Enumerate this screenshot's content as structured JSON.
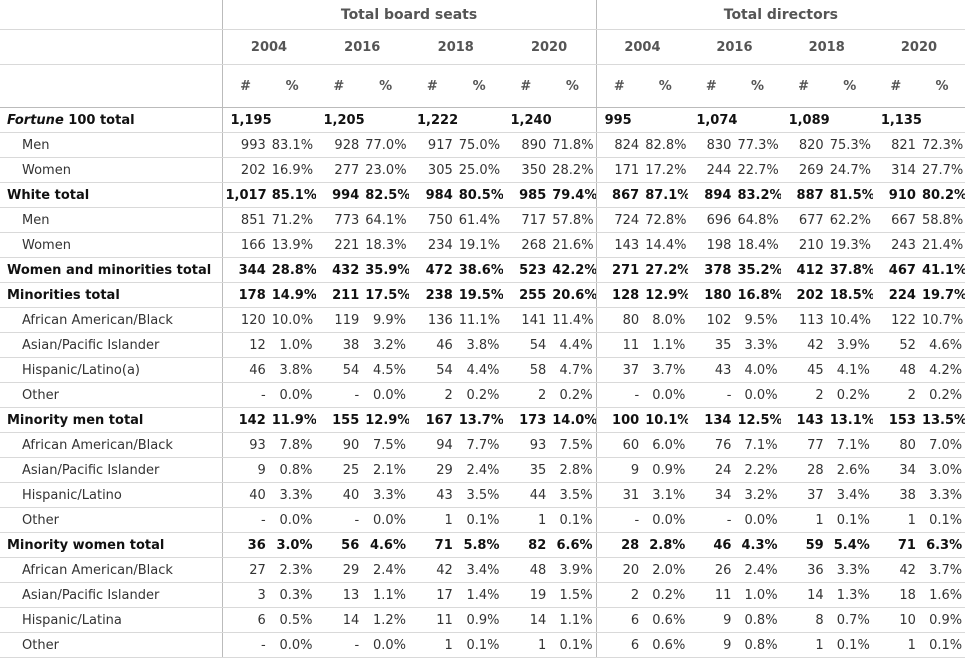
{
  "header": {
    "groups": [
      "Total board seats",
      "Total directors"
    ],
    "years": [
      "2004",
      "2016",
      "2018",
      "2020"
    ],
    "measures": [
      "#",
      "%"
    ]
  },
  "table": {
    "rows": [
      {
        "label_italic": "Fortune",
        "label": "100 total",
        "bold": true,
        "cells": [
          "1,195",
          "1,205",
          "1,222",
          "1,240",
          "995",
          "1,074",
          "1,089",
          "1,135"
        ]
      },
      {
        "label": "Men",
        "cells": [
          "993",
          "83.1%",
          "928",
          "77.0%",
          "917",
          "75.0%",
          "890",
          "71.8%",
          "824",
          "82.8%",
          "830",
          "77.3%",
          "820",
          "75.3%",
          "821",
          "72.3%"
        ]
      },
      {
        "label": "Women",
        "cells": [
          "202",
          "16.9%",
          "277",
          "23.0%",
          "305",
          "25.0%",
          "350",
          "28.2%",
          "171",
          "17.2%",
          "244",
          "22.7%",
          "269",
          "24.7%",
          "314",
          "27.7%"
        ]
      },
      {
        "label": "White total",
        "bold": true,
        "cells": [
          "1,017",
          "85.1%",
          "994",
          "82.5%",
          "984",
          "80.5%",
          "985",
          "79.4%",
          "867",
          "87.1%",
          "894",
          "83.2%",
          "887",
          "81.5%",
          "910",
          "80.2%"
        ]
      },
      {
        "label": "Men",
        "cells": [
          "851",
          "71.2%",
          "773",
          "64.1%",
          "750",
          "61.4%",
          "717",
          "57.8%",
          "724",
          "72.8%",
          "696",
          "64.8%",
          "677",
          "62.2%",
          "667",
          "58.8%"
        ]
      },
      {
        "label": "Women",
        "cells": [
          "166",
          "13.9%",
          "221",
          "18.3%",
          "234",
          "19.1%",
          "268",
          "21.6%",
          "143",
          "14.4%",
          "198",
          "18.4%",
          "210",
          "19.3%",
          "243",
          "21.4%"
        ]
      },
      {
        "label": "Women and minorities total",
        "bold": true,
        "cells": [
          "344",
          "28.8%",
          "432",
          "35.9%",
          "472",
          "38.6%",
          "523",
          "42.2%",
          "271",
          "27.2%",
          "378",
          "35.2%",
          "412",
          "37.8%",
          "467",
          "41.1%"
        ]
      },
      {
        "label": "Minorities total",
        "bold": true,
        "cells": [
          "178",
          "14.9%",
          "211",
          "17.5%",
          "238",
          "19.5%",
          "255",
          "20.6%",
          "128",
          "12.9%",
          "180",
          "16.8%",
          "202",
          "18.5%",
          "224",
          "19.7%"
        ]
      },
      {
        "label": "African American/Black",
        "cells": [
          "120",
          "10.0%",
          "119",
          "9.9%",
          "136",
          "11.1%",
          "141",
          "11.4%",
          "80",
          "8.0%",
          "102",
          "9.5%",
          "113",
          "10.4%",
          "122",
          "10.7%"
        ]
      },
      {
        "label": "Asian/Pacific Islander",
        "cells": [
          "12",
          "1.0%",
          "38",
          "3.2%",
          "46",
          "3.8%",
          "54",
          "4.4%",
          "11",
          "1.1%",
          "35",
          "3.3%",
          "42",
          "3.9%",
          "52",
          "4.6%"
        ]
      },
      {
        "label": "Hispanic/Latino(a)",
        "cells": [
          "46",
          "3.8%",
          "54",
          "4.5%",
          "54",
          "4.4%",
          "58",
          "4.7%",
          "37",
          "3.7%",
          "43",
          "4.0%",
          "45",
          "4.1%",
          "48",
          "4.2%"
        ]
      },
      {
        "label": "Other",
        "cells": [
          "-",
          "0.0%",
          "-",
          "0.0%",
          "2",
          "0.2%",
          "2",
          "0.2%",
          "-",
          "0.0%",
          "-",
          "0.0%",
          "2",
          "0.2%",
          "2",
          "0.2%"
        ]
      },
      {
        "label": "Minority men total",
        "bold": true,
        "cells": [
          "142",
          "11.9%",
          "155",
          "12.9%",
          "167",
          "13.7%",
          "173",
          "14.0%",
          "100",
          "10.1%",
          "134",
          "12.5%",
          "143",
          "13.1%",
          "153",
          "13.5%"
        ]
      },
      {
        "label": "African American/Black",
        "cells": [
          "93",
          "7.8%",
          "90",
          "7.5%",
          "94",
          "7.7%",
          "93",
          "7.5%",
          "60",
          "6.0%",
          "76",
          "7.1%",
          "77",
          "7.1%",
          "80",
          "7.0%"
        ]
      },
      {
        "label": "Asian/Pacific Islander",
        "cells": [
          "9",
          "0.8%",
          "25",
          "2.1%",
          "29",
          "2.4%",
          "35",
          "2.8%",
          "9",
          "0.9%",
          "24",
          "2.2%",
          "28",
          "2.6%",
          "34",
          "3.0%"
        ]
      },
      {
        "label": "Hispanic/Latino",
        "cells": [
          "40",
          "3.3%",
          "40",
          "3.3%",
          "43",
          "3.5%",
          "44",
          "3.5%",
          "31",
          "3.1%",
          "34",
          "3.2%",
          "37",
          "3.4%",
          "38",
          "3.3%"
        ]
      },
      {
        "label": "Other",
        "cells": [
          "-",
          "0.0%",
          "-",
          "0.0%",
          "1",
          "0.1%",
          "1",
          "0.1%",
          "-",
          "0.0%",
          "-",
          "0.0%",
          "1",
          "0.1%",
          "1",
          "0.1%"
        ]
      },
      {
        "label": "Minority women total",
        "bold": true,
        "cells": [
          "36",
          "3.0%",
          "56",
          "4.6%",
          "71",
          "5.8%",
          "82",
          "6.6%",
          "28",
          "2.8%",
          "46",
          "4.3%",
          "59",
          "5.4%",
          "71",
          "6.3%"
        ]
      },
      {
        "label": "African American/Black",
        "cells": [
          "27",
          "2.3%",
          "29",
          "2.4%",
          "42",
          "3.4%",
          "48",
          "3.9%",
          "20",
          "2.0%",
          "26",
          "2.4%",
          "36",
          "3.3%",
          "42",
          "3.7%"
        ]
      },
      {
        "label": "Asian/Pacific Islander",
        "cells": [
          "3",
          "0.3%",
          "13",
          "1.1%",
          "17",
          "1.4%",
          "19",
          "1.5%",
          "2",
          "0.2%",
          "11",
          "1.0%",
          "14",
          "1.3%",
          "18",
          "1.6%"
        ]
      },
      {
        "label": "Hispanic/Latina",
        "cells": [
          "6",
          "0.5%",
          "14",
          "1.2%",
          "11",
          "0.9%",
          "14",
          "1.1%",
          "6",
          "0.6%",
          "9",
          "0.8%",
          "8",
          "0.7%",
          "10",
          "0.9%"
        ]
      },
      {
        "label": "Other",
        "cells": [
          "-",
          "0.0%",
          "-",
          "0.0%",
          "1",
          "0.1%",
          "1",
          "0.1%",
          "6",
          "0.6%",
          "9",
          "0.8%",
          "1",
          "0.1%",
          "1",
          "0.1%"
        ]
      }
    ]
  }
}
